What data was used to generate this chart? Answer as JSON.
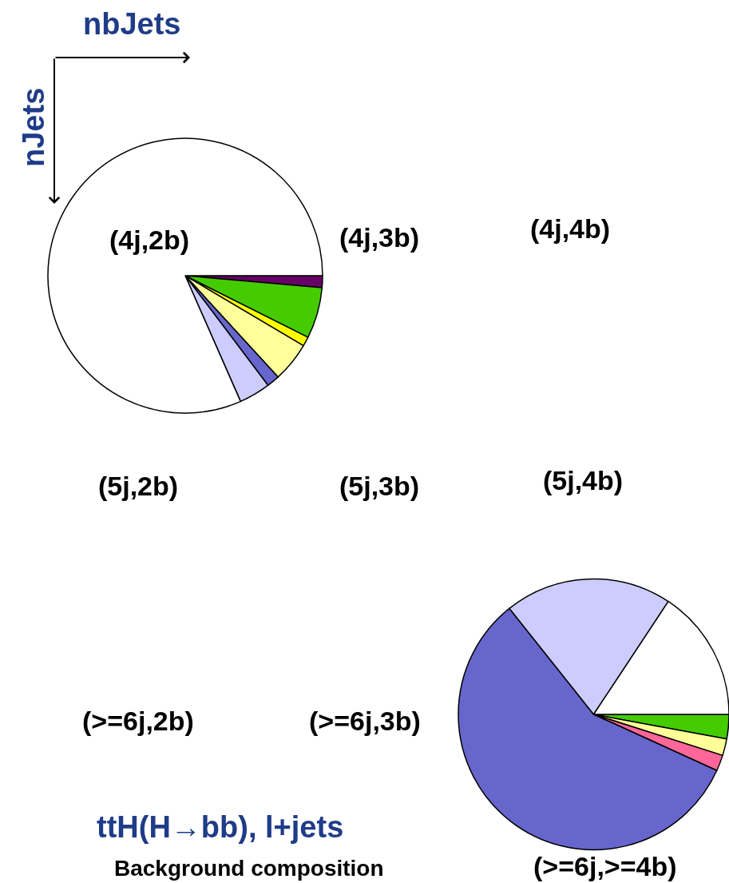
{
  "chart_data": [
    {
      "type": "pie",
      "categories": [
        null,
        null,
        null,
        null,
        null,
        null,
        null,
        null,
        null
      ],
      "colors": [
        "#ffffff",
        "#ccccff",
        "#6666cc",
        "#ff6699",
        "#ffff99",
        "#ffff00",
        "#ff9900",
        "#44cc00",
        "#660066"
      ],
      "values": [
        81.6,
        3.7,
        1.5,
        null,
        4.7,
        1.1,
        null,
        6.0,
        1.4
      ],
      "annotations": [
        "nbJets",
        "nJets",
        "(4j,2b)",
        "(4j,3b)",
        "(4j,4b)",
        "(5j,2b)",
        "(5j,3b)",
        "(5j,4b)",
        "(>=6j,2b)",
        "(>=6j,3b)",
        "(>=6j,>=4b)",
        "ttH(H→bb), l+jets",
        "Background composition"
      ]
    },
    {
      "type": "pie",
      "categories": [
        null,
        null,
        null,
        null,
        null,
        null,
        null,
        null,
        null
      ],
      "colors": [
        "#ffffff",
        "#ccccff",
        "#6666cc",
        "#ff6699",
        "#ffff99",
        "#ffff00",
        "#ff9900",
        "#44cc00",
        "#660066"
      ],
      "values": [
        15.7,
        20.0,
        57.5,
        1.9,
        2.0,
        null,
        null,
        2.9,
        null
      ]
    }
  ]
}
